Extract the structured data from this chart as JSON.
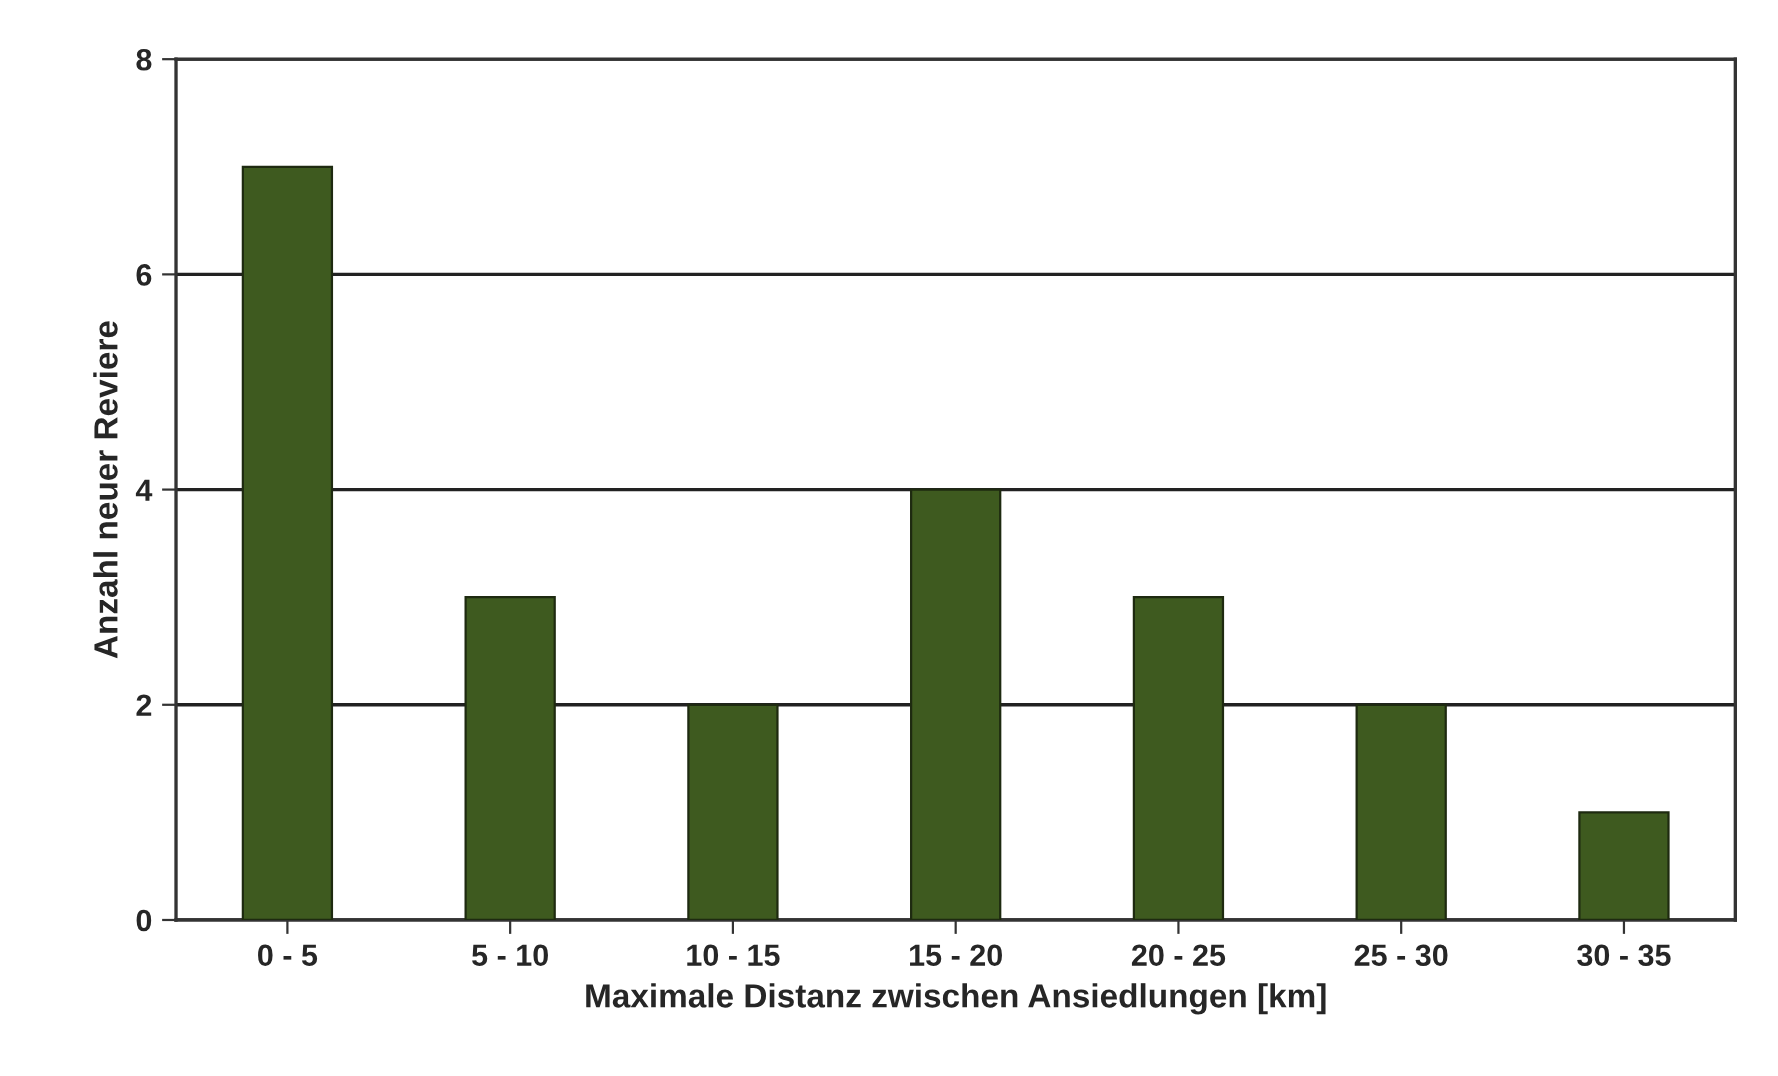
{
  "chart_data": {
    "type": "bar",
    "xlabel": "Maximale Distanz zwischen Ansiedlungen [km]",
    "ylabel": "Anzahl neuer Reviere",
    "categories": [
      "0 - 5",
      "5 - 10",
      "10 - 15",
      "15 - 20",
      "20 - 25",
      "25 - 30",
      "30 - 35"
    ],
    "values": [
      7,
      3,
      2,
      4,
      3,
      2,
      1
    ],
    "color": "#3e5a1f",
    "ylim": [
      0,
      8
    ],
    "yticks": [
      0,
      2,
      4,
      6,
      8
    ],
    "grid": "y",
    "legend": false
  }
}
